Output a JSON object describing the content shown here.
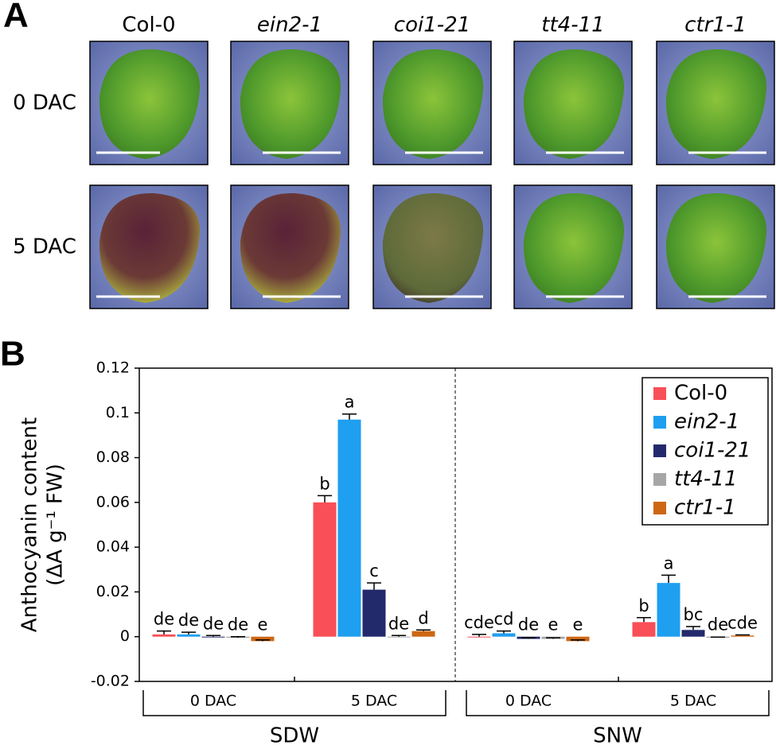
{
  "panel_a": {
    "label": "A",
    "columns": [
      "Col-0",
      "ein2-1",
      "coi1-21",
      "tt4-11",
      "ctr1-1"
    ],
    "rows": [
      "0 DAC",
      "5 DAC"
    ]
  },
  "panel_b_label": "B",
  "chart_data": {
    "type": "bar",
    "ylabel": [
      "Anthocyanin content",
      "(ΔA g⁻¹ FW)"
    ],
    "categories": [
      "0 DAC",
      "5 DAC",
      "0 DAC",
      "5 DAC"
    ],
    "groups": [
      "SDW",
      "SNW"
    ],
    "ylim": [
      -0.02,
      0.12
    ],
    "yticks": [
      -0.02,
      0,
      0.02,
      0.04,
      0.06,
      0.08,
      0.1,
      0.12
    ],
    "legend": "top-right",
    "series": [
      {
        "name": "Col-0",
        "color": "#f94f57",
        "values": [
          0.001,
          0.06,
          0,
          0.0065
        ],
        "errors": [
          0.0015,
          0.003,
          0.001,
          0.002
        ],
        "letters": [
          "de",
          "b",
          "cde",
          "b"
        ]
      },
      {
        "name": "ein2-1",
        "color": "#1e9ff0",
        "values": [
          0.001,
          0.097,
          0.0015,
          0.024
        ],
        "errors": [
          0.001,
          0.0025,
          0.001,
          0.0035
        ],
        "letters": [
          "de",
          "a",
          "cd",
          "a"
        ]
      },
      {
        "name": "coi1-21",
        "color": "#232a6b",
        "values": [
          0,
          0.021,
          -0.001,
          0.003
        ],
        "errors": [
          0.0005,
          0.003,
          0.0005,
          0.0015
        ],
        "letters": [
          "de",
          "c",
          "de",
          "bc"
        ]
      },
      {
        "name": "tt4-11",
        "color": "#a6a6a6",
        "values": [
          -0.0005,
          0,
          -0.001,
          -0.0005
        ],
        "errors": [
          0.0005,
          0.0005,
          0.0005,
          0.0003
        ],
        "letters": [
          "de",
          "de",
          "e",
          "de"
        ]
      },
      {
        "name": "ctr1-1",
        "color": "#cd6714",
        "values": [
          -0.002,
          0.0025,
          -0.002,
          0.0005
        ],
        "errors": [
          0.0005,
          0.0005,
          0.0005,
          0.0003
        ],
        "letters": [
          "e",
          "d",
          "e",
          "cde"
        ]
      }
    ]
  }
}
